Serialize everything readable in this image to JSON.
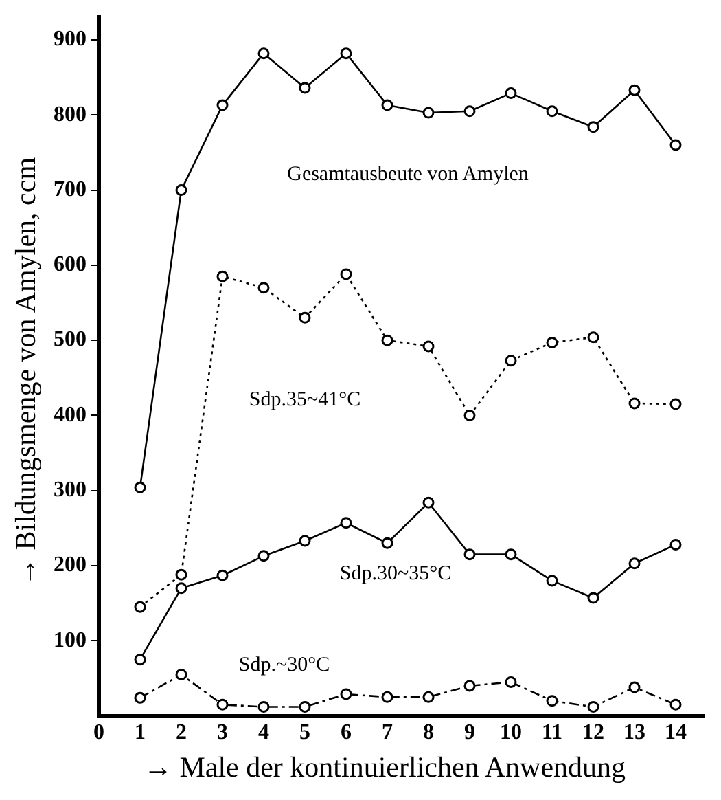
{
  "chart_data": {
    "type": "line",
    "xlabel": "→ Male der kontinuierlichen Anwendung",
    "ylabel": "→ Bildungsmenge von Amylen, ccm",
    "x": [
      1,
      2,
      3,
      4,
      5,
      6,
      7,
      8,
      9,
      10,
      11,
      12,
      13,
      14
    ],
    "series": [
      {
        "name": "Gesamtausbeute von Amylen",
        "color": "#000000",
        "line_style": "solid",
        "values": [
          304,
          700,
          813,
          882,
          836,
          882,
          813,
          803,
          805,
          829,
          805,
          784,
          833,
          760
        ]
      },
      {
        "name": "Sdp.35~41°C",
        "color": "#000000",
        "line_style": "dotted",
        "values": [
          145,
          188,
          585,
          570,
          530,
          588,
          500,
          492,
          400,
          473,
          497,
          504,
          416,
          415
        ]
      },
      {
        "name": "Sdp.30~35°C",
        "color": "#000000",
        "line_style": "solid",
        "values": [
          75,
          170,
          187,
          213,
          233,
          257,
          230,
          284,
          215,
          215,
          180,
          157,
          203,
          228
        ]
      },
      {
        "name": "Sdp.~30°C",
        "color": "#000000",
        "line_style": "dashed",
        "values": [
          24,
          55,
          15,
          12,
          12,
          29,
          25,
          25,
          40,
          45,
          20,
          12,
          38,
          15
        ]
      }
    ],
    "xlim": [
      0,
      14.7
    ],
    "xticks": [
      0,
      1,
      2,
      3,
      4,
      5,
      6,
      7,
      8,
      9,
      10,
      11,
      12,
      13,
      14
    ],
    "ylim": [
      0,
      930
    ],
    "yticks": [
      100,
      200,
      300,
      400,
      500,
      600,
      700,
      800,
      900
    ],
    "grid": false,
    "legend": false,
    "marker": "circle"
  }
}
